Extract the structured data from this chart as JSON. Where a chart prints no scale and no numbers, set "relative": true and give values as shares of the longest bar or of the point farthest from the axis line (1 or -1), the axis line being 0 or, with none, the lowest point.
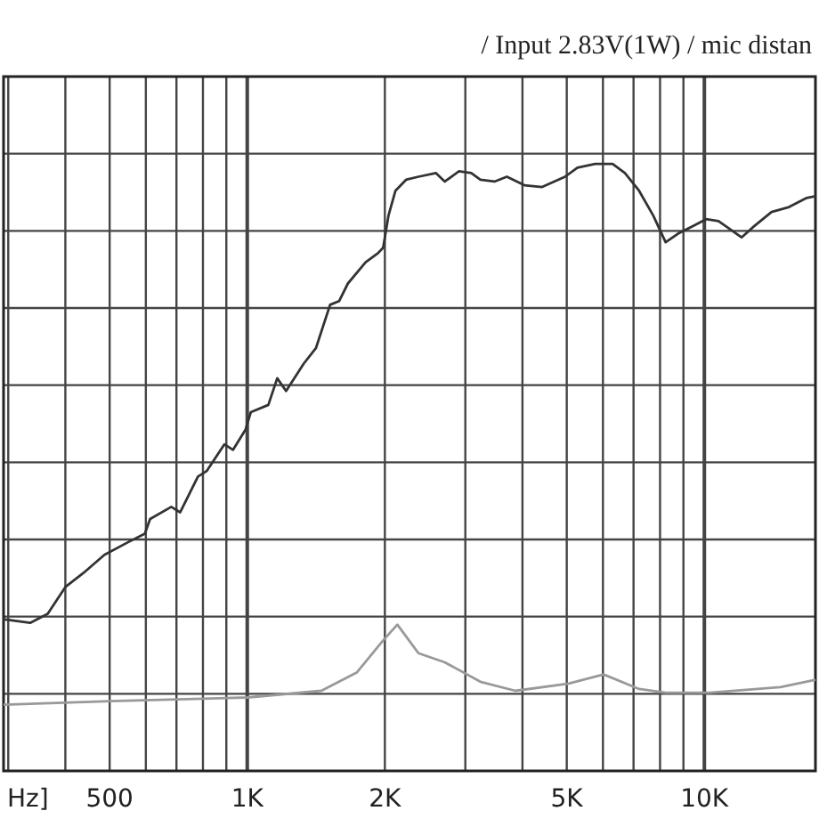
{
  "chart_data": {
    "type": "line",
    "title": "/ Input 2.83V(1W) / mic distan",
    "xlabel": "Hz]",
    "relative": true,
    "log": "x",
    "grid": true,
    "line_style": "solid",
    "xlim": [
      293,
      17500
    ],
    "xticks": [
      {
        "value": 300,
        "label": null
      },
      {
        "value": 400,
        "label": null
      },
      500,
      {
        "value": 600,
        "label": null
      },
      {
        "value": 700,
        "label": null
      },
      {
        "value": 800,
        "label": null
      },
      {
        "value": 900,
        "label": null
      },
      {
        "value": 1000,
        "label": "1K"
      },
      {
        "value": 2000,
        "label": "2K"
      },
      {
        "value": 3000,
        "label": null
      },
      {
        "value": 4000,
        "label": null
      },
      {
        "value": 5000,
        "label": "5K"
      },
      {
        "value": 6000,
        "label": null
      },
      {
        "value": 7000,
        "label": null
      },
      {
        "value": 8000,
        "label": null
      },
      {
        "value": 9000,
        "label": null
      },
      {
        "value": 10000,
        "label": "10K"
      }
    ],
    "series": [
      {
        "color": "#333333",
        "x": [
          293,
          335,
          366,
          400,
          438,
          487,
          546,
          597,
          613,
          682,
          713,
          780,
          815,
          891,
          931,
          991,
          1018,
          1112,
          1163,
          1216,
          1329,
          1414,
          1518,
          1588,
          1660,
          1815,
          1932,
          1983,
          2037,
          2110,
          2225,
          2369,
          2588,
          2705,
          2905,
          3091,
          3236,
          3474,
          3698,
          4039,
          4417,
          4959,
          5275,
          5767,
          6300,
          6702,
          7197,
          7730,
          8228,
          8753,
          9400,
          10090,
          10740,
          12060,
          12830,
          14030,
          15320,
          16750,
          17500
        ],
        "values": [
          0.25,
          0.244,
          0.259,
          0.303,
          0.326,
          0.356,
          0.376,
          0.391,
          0.415,
          0.435,
          0.426,
          0.485,
          0.494,
          0.538,
          0.529,
          0.562,
          0.591,
          0.603,
          0.647,
          0.626,
          0.671,
          0.697,
          0.768,
          0.774,
          0.803,
          0.838,
          0.853,
          0.862,
          0.915,
          0.956,
          0.974,
          0.979,
          0.985,
          0.971,
          0.988,
          0.985,
          0.974,
          0.971,
          0.979,
          0.965,
          0.962,
          0.979,
          0.994,
          1,
          1,
          0.985,
          0.956,
          0.915,
          0.871,
          0.885,
          0.897,
          0.909,
          0.906,
          0.879,
          0.897,
          0.921,
          0.929,
          0.944,
          0.947
        ]
      },
      {
        "color": "#999999",
        "x": [
          293,
          500,
          1000,
          1452,
          1735,
          1983,
          2130,
          2369,
          2705,
          3236,
          3862,
          5050,
          6020,
          7197,
          8228,
          10260,
          14670,
          17500
        ],
        "values": [
          0.109,
          0.115,
          0.121,
          0.132,
          0.162,
          0.215,
          0.241,
          0.194,
          0.179,
          0.147,
          0.132,
          0.144,
          0.159,
          0.135,
          0.129,
          0.129,
          0.138,
          0.15
        ]
      }
    ]
  }
}
